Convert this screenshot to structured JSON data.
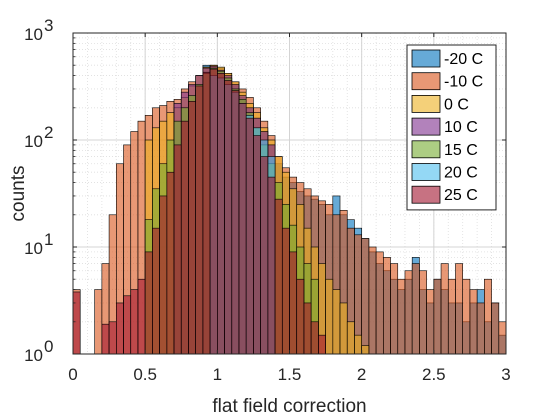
{
  "chart_data": {
    "type": "bar",
    "xlabel": "flat field correction",
    "ylabel": "counts",
    "xlim": [
      0,
      3
    ],
    "ylim": [
      1,
      1000
    ],
    "yscale": "log",
    "grid": true,
    "minor_grid": true,
    "legend_position": "top-right",
    "bin_width": 0.05,
    "x_ticks": [
      0,
      0.5,
      1,
      1.5,
      2,
      2.5,
      3
    ],
    "x_tick_labels": [
      "0",
      "0.5",
      "1",
      "1.5",
      "2",
      "2.5",
      "3"
    ],
    "y_ticks": [
      1,
      10,
      100,
      1000
    ],
    "y_tick_bases": [
      "10",
      "10",
      "10",
      "10"
    ],
    "y_tick_exponents": [
      "0",
      "1",
      "2",
      "3"
    ],
    "series": [
      {
        "name": "-20 C",
        "color": "#0072BD",
        "bins": [
          [
            0.9,
            500
          ],
          [
            0.95,
            480
          ],
          [
            1.0,
            420
          ],
          [
            1.05,
            380
          ],
          [
            1.1,
            320
          ],
          [
            1.15,
            250
          ],
          [
            1.2,
            200
          ],
          [
            1.25,
            160
          ],
          [
            1.3,
            120
          ],
          [
            1.35,
            90
          ],
          [
            1.4,
            60
          ],
          [
            1.45,
            45
          ],
          [
            1.5,
            40
          ],
          [
            1.55,
            33
          ],
          [
            1.6,
            30
          ],
          [
            1.65,
            28
          ],
          [
            1.7,
            25
          ],
          [
            1.75,
            20
          ],
          [
            1.8,
            30
          ],
          [
            1.85,
            20
          ],
          [
            1.9,
            18
          ],
          [
            1.95,
            15
          ],
          [
            2.0,
            12
          ],
          [
            2.05,
            9
          ],
          [
            2.1,
            7
          ],
          [
            2.15,
            6
          ],
          [
            2.2,
            5
          ],
          [
            2.25,
            4
          ],
          [
            2.3,
            5
          ],
          [
            2.35,
            8
          ],
          [
            2.4,
            4
          ],
          [
            2.45,
            3
          ],
          [
            2.5,
            5
          ],
          [
            2.55,
            4
          ],
          [
            2.6,
            3
          ],
          [
            2.65,
            3
          ],
          [
            2.7,
            2
          ],
          [
            2.75,
            3
          ],
          [
            2.8,
            4
          ],
          [
            2.85,
            2
          ],
          [
            2.9,
            3
          ],
          [
            2.95,
            1.5
          ]
        ]
      },
      {
        "name": "-10 C",
        "color": "#D95319",
        "bins": [
          [
            0.0,
            4
          ],
          [
            0.15,
            4
          ],
          [
            0.2,
            7
          ],
          [
            0.25,
            20
          ],
          [
            0.3,
            60
          ],
          [
            0.35,
            90
          ],
          [
            0.4,
            120
          ],
          [
            0.45,
            150
          ],
          [
            0.5,
            170
          ],
          [
            0.55,
            200
          ],
          [
            0.6,
            210
          ],
          [
            0.65,
            230
          ],
          [
            0.7,
            240
          ],
          [
            0.75,
            300
          ],
          [
            0.8,
            350
          ],
          [
            0.85,
            400
          ],
          [
            0.9,
            480
          ],
          [
            0.95,
            500
          ],
          [
            1.0,
            470
          ],
          [
            1.05,
            420
          ],
          [
            1.1,
            350
          ],
          [
            1.15,
            300
          ],
          [
            1.2,
            250
          ],
          [
            1.25,
            200
          ],
          [
            1.3,
            150
          ],
          [
            1.35,
            110
          ],
          [
            1.4,
            70
          ],
          [
            1.45,
            55
          ],
          [
            1.5,
            45
          ],
          [
            1.55,
            40
          ],
          [
            1.6,
            35
          ],
          [
            1.65,
            30
          ],
          [
            1.7,
            27
          ],
          [
            1.75,
            25
          ],
          [
            1.8,
            20
          ],
          [
            1.85,
            22
          ],
          [
            1.9,
            15
          ],
          [
            1.95,
            13
          ],
          [
            2.0,
            12
          ],
          [
            2.05,
            10
          ],
          [
            2.1,
            9
          ],
          [
            2.15,
            8
          ],
          [
            2.2,
            7
          ],
          [
            2.25,
            5
          ],
          [
            2.3,
            6
          ],
          [
            2.35,
            7
          ],
          [
            2.4,
            6
          ],
          [
            2.45,
            4
          ],
          [
            2.5,
            5
          ],
          [
            2.55,
            7
          ],
          [
            2.6,
            5
          ],
          [
            2.65,
            7
          ],
          [
            2.7,
            5
          ],
          [
            2.75,
            4
          ],
          [
            2.8,
            3
          ],
          [
            2.85,
            5
          ],
          [
            2.9,
            3
          ],
          [
            2.95,
            2
          ]
        ]
      },
      {
        "name": "0 C",
        "color": "#EDB120",
        "bins": [
          [
            0.5,
            100
          ],
          [
            0.55,
            130
          ],
          [
            0.6,
            150
          ],
          [
            0.65,
            180
          ],
          [
            0.7,
            200
          ],
          [
            0.75,
            250
          ],
          [
            0.8,
            320
          ],
          [
            0.85,
            400
          ],
          [
            0.9,
            480
          ],
          [
            0.95,
            500
          ],
          [
            1.0,
            480
          ],
          [
            1.05,
            420
          ],
          [
            1.1,
            350
          ],
          [
            1.15,
            280
          ],
          [
            1.2,
            220
          ],
          [
            1.25,
            180
          ],
          [
            1.3,
            130
          ],
          [
            1.35,
            100
          ],
          [
            1.4,
            70
          ],
          [
            1.45,
            50
          ],
          [
            1.5,
            35
          ],
          [
            1.55,
            25
          ],
          [
            1.6,
            15
          ],
          [
            1.65,
            10
          ],
          [
            1.7,
            7
          ],
          [
            1.75,
            5
          ],
          [
            1.8,
            4
          ],
          [
            1.85,
            3
          ],
          [
            1.9,
            2
          ],
          [
            1.95,
            1.5
          ],
          [
            2.0,
            1.2
          ]
        ]
      },
      {
        "name": "10 C",
        "color": "#7E2F8E",
        "bins": [
          [
            0.7,
            220
          ],
          [
            0.75,
            280
          ],
          [
            0.8,
            330
          ],
          [
            0.85,
            400
          ],
          [
            0.9,
            470
          ],
          [
            0.95,
            490
          ],
          [
            1.0,
            450
          ],
          [
            1.05,
            400
          ],
          [
            1.1,
            330
          ],
          [
            1.15,
            260
          ],
          [
            1.2,
            200
          ],
          [
            1.25,
            160
          ],
          [
            1.3,
            120
          ],
          [
            1.35,
            90
          ]
        ]
      },
      {
        "name": "15 C",
        "color": "#77AC30",
        "bins": [
          [
            0.5,
            18
          ],
          [
            0.55,
            35
          ],
          [
            0.6,
            60
          ],
          [
            0.65,
            100
          ],
          [
            0.7,
            150
          ],
          [
            0.75,
            200
          ],
          [
            0.8,
            260
          ],
          [
            0.85,
            330
          ],
          [
            0.9,
            420
          ],
          [
            0.95,
            470
          ],
          [
            1.0,
            440
          ],
          [
            1.05,
            380
          ],
          [
            1.1,
            300
          ],
          [
            1.15,
            240
          ],
          [
            1.2,
            180
          ],
          [
            1.25,
            130
          ],
          [
            1.3,
            90
          ],
          [
            1.35,
            60
          ],
          [
            1.4,
            40
          ],
          [
            1.45,
            25
          ],
          [
            1.5,
            16
          ],
          [
            1.55,
            10
          ],
          [
            1.6,
            7
          ],
          [
            1.65,
            5
          ]
        ]
      },
      {
        "name": "20 C",
        "color": "#4DBEEE",
        "bins": [
          [
            0.95,
            400
          ],
          [
            1.0,
            380
          ],
          [
            1.05,
            330
          ],
          [
            1.1,
            280
          ],
          [
            1.15,
            220
          ],
          [
            1.2,
            170
          ],
          [
            1.25,
            130
          ],
          [
            1.3,
            100
          ],
          [
            1.35,
            70
          ]
        ]
      },
      {
        "name": "25 C",
        "color": "#A2142F",
        "bins": [
          [
            0.0,
            3.8
          ],
          [
            0.1,
            1
          ],
          [
            0.15,
            1
          ],
          [
            0.2,
            1.9
          ],
          [
            0.25,
            2
          ],
          [
            0.3,
            3
          ],
          [
            0.35,
            3.5
          ],
          [
            0.4,
            4
          ],
          [
            0.45,
            5
          ],
          [
            0.5,
            9
          ],
          [
            0.55,
            15
          ],
          [
            0.6,
            30
          ],
          [
            0.65,
            50
          ],
          [
            0.7,
            90
          ],
          [
            0.75,
            150
          ],
          [
            0.8,
            230
          ],
          [
            0.85,
            320
          ],
          [
            0.9,
            430
          ],
          [
            0.95,
            460
          ],
          [
            1.0,
            420
          ],
          [
            1.05,
            360
          ],
          [
            1.1,
            290
          ],
          [
            1.15,
            220
          ],
          [
            1.2,
            160
          ],
          [
            1.25,
            110
          ],
          [
            1.3,
            70
          ],
          [
            1.35,
            45
          ],
          [
            1.4,
            28
          ],
          [
            1.45,
            15
          ],
          [
            1.5,
            9
          ],
          [
            1.55,
            5
          ],
          [
            1.6,
            3
          ],
          [
            1.65,
            2
          ],
          [
            1.7,
            1.5
          ]
        ]
      }
    ]
  }
}
